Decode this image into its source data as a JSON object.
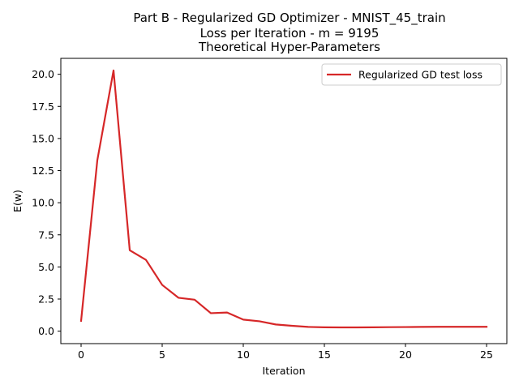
{
  "chart_data": {
    "type": "line",
    "title_lines": [
      "Part B - Regularized GD Optimizer - MNIST_45_train",
      "Loss per Iteration - m = 9195",
      "Theoretical Hyper-Parameters"
    ],
    "xlabel": "Iteration",
    "ylabel": "E(w)",
    "xlim": [
      -1.25,
      26.25
    ],
    "ylim": [
      -0.97,
      21.24
    ],
    "xticks": [
      0,
      5,
      10,
      15,
      20,
      25
    ],
    "xtick_labels": [
      "0",
      "5",
      "10",
      "15",
      "20",
      "25"
    ],
    "yticks": [
      0.0,
      2.5,
      5.0,
      7.5,
      10.0,
      12.5,
      15.0,
      17.5,
      20.0
    ],
    "ytick_labels": [
      "0.0",
      "2.5",
      "5.0",
      "7.5",
      "10.0",
      "12.5",
      "15.0",
      "17.5",
      "20.0"
    ],
    "grid": false,
    "legend_position": "upper right",
    "series": [
      {
        "name": "Regularized GD test loss",
        "color": "#d62728",
        "x": [
          0,
          1,
          2,
          3,
          4,
          5,
          6,
          7,
          8,
          9,
          10,
          11,
          12,
          13,
          14,
          15,
          16,
          17,
          18,
          19,
          20,
          21,
          22,
          23,
          24,
          25
        ],
        "y": [
          0.8,
          13.3,
          20.3,
          6.3,
          5.55,
          3.6,
          2.6,
          2.45,
          1.4,
          1.45,
          0.9,
          0.77,
          0.52,
          0.42,
          0.33,
          0.3,
          0.29,
          0.29,
          0.3,
          0.31,
          0.32,
          0.33,
          0.34,
          0.34,
          0.34,
          0.34
        ]
      }
    ]
  }
}
